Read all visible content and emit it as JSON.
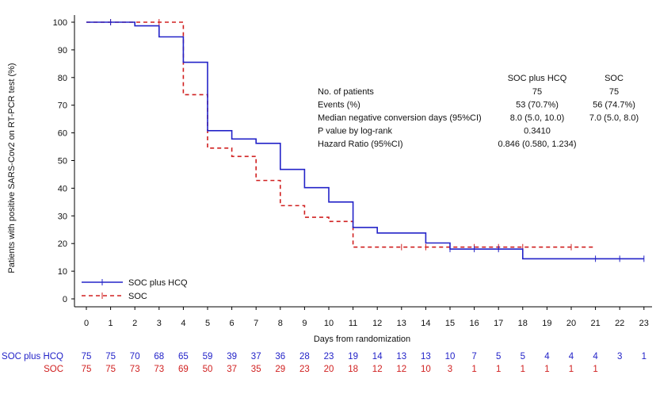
{
  "chart_data": {
    "type": "line",
    "title": "",
    "xlabel": "Days from randomization",
    "ylabel": "Patients with positive SARS-Cov2 on RT-PCR test (%)",
    "xlim": [
      0,
      23
    ],
    "ylim": [
      0,
      100
    ],
    "x_ticks": [
      0,
      1,
      2,
      3,
      4,
      5,
      6,
      7,
      8,
      9,
      10,
      11,
      12,
      13,
      14,
      15,
      16,
      17,
      18,
      19,
      20,
      21,
      22,
      23
    ],
    "y_ticks": [
      0,
      10,
      20,
      30,
      40,
      50,
      60,
      70,
      80,
      90,
      100
    ],
    "grid": false,
    "legend_position": "bottom-left",
    "series": [
      {
        "name": "SOC plus HCQ",
        "color": "#2323c8",
        "line_style": "solid",
        "steps": [
          [
            0,
            100
          ],
          [
            2,
            98.7
          ],
          [
            3,
            94.7
          ],
          [
            4,
            85.5
          ],
          [
            5,
            60.8
          ],
          [
            6,
            57.8
          ],
          [
            7,
            56.2
          ],
          [
            8,
            46.8
          ],
          [
            9,
            40.2
          ],
          [
            10,
            35
          ],
          [
            11,
            25.8
          ],
          [
            12,
            23.8
          ],
          [
            14,
            20.2
          ],
          [
            15,
            18
          ],
          [
            18,
            14.5
          ],
          [
            23,
            14.5
          ]
        ],
        "end_day": 23,
        "censor_marks": [
          [
            1,
            100
          ],
          [
            15,
            18
          ],
          [
            16,
            18
          ],
          [
            17,
            18
          ],
          [
            21,
            14.5
          ],
          [
            22,
            14.5
          ],
          [
            23,
            14.5
          ]
        ]
      },
      {
        "name": "SOC",
        "color": "#d02020",
        "line_style": "dashed",
        "steps": [
          [
            0,
            100
          ],
          [
            4,
            96
          ],
          [
            4,
            73.8
          ],
          [
            5,
            54.5
          ],
          [
            6,
            51.5
          ],
          [
            7,
            42.8
          ],
          [
            8,
            33.7
          ],
          [
            9,
            29.5
          ],
          [
            10,
            28
          ],
          [
            11,
            18.7
          ],
          [
            21,
            18.7
          ]
        ],
        "end_day": 21,
        "censor_marks": [
          [
            1,
            100
          ],
          [
            3,
            100
          ],
          [
            13,
            18.7
          ],
          [
            14,
            18.7
          ],
          [
            16,
            18.7
          ],
          [
            17,
            18.7
          ],
          [
            18,
            18.7
          ],
          [
            20,
            18.7
          ]
        ]
      }
    ],
    "stats_table": {
      "headers": [
        "SOC plus HCQ",
        "SOC"
      ],
      "rows": [
        {
          "label": "No. of patients",
          "values": [
            "75",
            "75"
          ]
        },
        {
          "label": "Events (%)",
          "values": [
            "53 (70.7%)",
            "56 (74.7%)"
          ]
        },
        {
          "label": "Median negative conversion days (95%CI)",
          "values": [
            "8.0 (5.0, 10.0)",
            "7.0 (5.0, 8.0)"
          ]
        },
        {
          "label": "P value by log-rank",
          "values": [
            "0.3410"
          ]
        },
        {
          "label": "Hazard Ratio (95%CI)",
          "values": [
            "0.846 (0.580, 1.234)"
          ]
        }
      ]
    },
    "at_risk": [
      {
        "label": "SOC plus HCQ",
        "color": "#2323c8",
        "values": [
          75,
          75,
          70,
          68,
          65,
          59,
          39,
          37,
          36,
          28,
          23,
          19,
          14,
          13,
          13,
          10,
          7,
          5,
          5,
          4,
          4,
          4,
          3,
          1
        ]
      },
      {
        "label": "SOC",
        "color": "#d02020",
        "values": [
          75,
          75,
          73,
          73,
          69,
          50,
          37,
          35,
          29,
          23,
          20,
          18,
          12,
          12,
          10,
          3,
          1,
          1,
          1,
          1,
          1,
          1
        ]
      }
    ]
  }
}
